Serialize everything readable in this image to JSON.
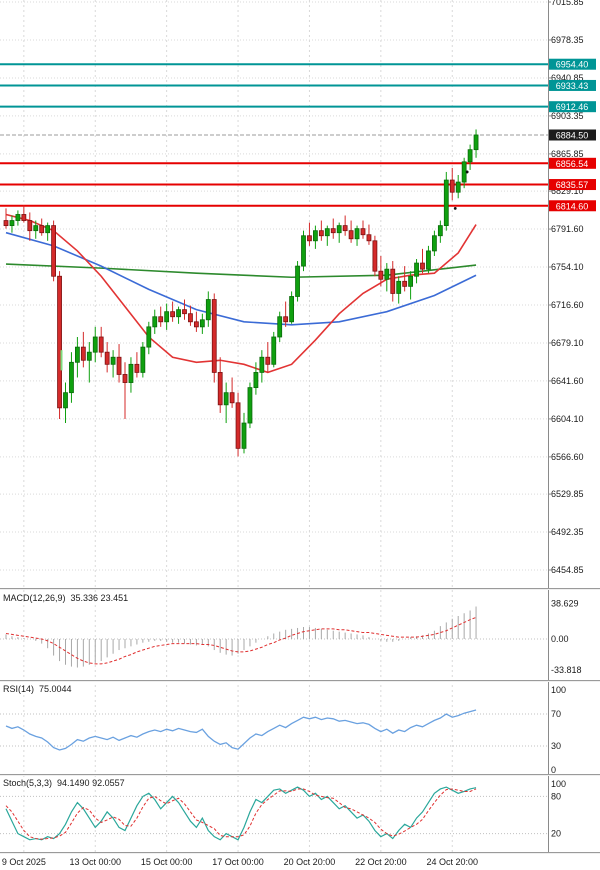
{
  "chart_data": {
    "type": "candlestick",
    "grid": true,
    "colors": {
      "candle_up": "#0fa00f",
      "candle_up_border": "#0a6b0a",
      "candle_down": "#d42a2a",
      "candle_down_border": "#7c1212",
      "grid": "#d9d9d9",
      "axis_text": "#1a1a1a",
      "level_teal": "#009596",
      "level_red": "#e60000"
    },
    "price_axis": {
      "plain_ticks": [
        {
          "label": "7015.85",
          "price": 7015.85
        },
        {
          "label": "6978.35",
          "price": 6978.35
        },
        {
          "label": "6940.85",
          "price": 6940.85
        },
        {
          "label": "6903.35",
          "price": 6903.35
        },
        {
          "label": "6865.85",
          "price": 6865.85
        },
        {
          "label": "6829.10",
          "price": 6829.1
        },
        {
          "label": "6791.60",
          "price": 6791.6
        },
        {
          "label": "6754.10",
          "price": 6754.1
        },
        {
          "label": "6716.60",
          "price": 6716.6
        },
        {
          "label": "6679.10",
          "price": 6679.1
        },
        {
          "label": "6641.60",
          "price": 6641.6
        },
        {
          "label": "6604.10",
          "price": 6604.1
        },
        {
          "label": "6566.60",
          "price": 6566.6
        },
        {
          "label": "6529.85",
          "price": 6529.85
        },
        {
          "label": "6492.35",
          "price": 6492.35
        },
        {
          "label": "6454.85",
          "price": 6454.85
        }
      ],
      "current": {
        "label": "6884.50",
        "price": 6884.5,
        "line_color": "#9b9b9b",
        "box_color": "#1c1c1c"
      }
    },
    "levels": [
      {
        "label": "6954.40",
        "price": 6954.4,
        "color": "#009596"
      },
      {
        "label": "6933.43",
        "price": 6933.43,
        "color": "#009596"
      },
      {
        "label": "6912.46",
        "price": 6912.46,
        "color": "#009596"
      },
      {
        "label": "6856.54",
        "price": 6856.54,
        "color": "#e60000"
      },
      {
        "label": "6835.57",
        "price": 6835.57,
        "color": "#e60000"
      },
      {
        "label": "6814.60",
        "price": 6814.6,
        "color": "#e60000"
      }
    ],
    "time_axis": [
      {
        "i": 3,
        "label": "9 Oct 2025"
      },
      {
        "i": 15,
        "label": "13 Oct 00:00"
      },
      {
        "i": 27,
        "label": "15 Oct 00:00"
      },
      {
        "i": 39,
        "label": "17 Oct 00:00"
      },
      {
        "i": 51,
        "label": "20 Oct 20:00"
      },
      {
        "i": 63,
        "label": "22 Oct 20:00"
      },
      {
        "i": 75,
        "label": "24 Oct 20:00"
      }
    ],
    "candles": [
      [
        6800,
        6812,
        6792,
        6795
      ],
      [
        6795,
        6805,
        6788,
        6800
      ],
      [
        6800,
        6810,
        6795,
        6806
      ],
      [
        6806,
        6815,
        6798,
        6800
      ],
      [
        6800,
        6808,
        6780,
        6790
      ],
      [
        6790,
        6800,
        6782,
        6795
      ],
      [
        6795,
        6802,
        6785,
        6788
      ],
      [
        6788,
        6798,
        6780,
        6795
      ],
      [
        6795,
        6800,
        6740,
        6745
      ],
      [
        6745,
        6750,
        6604,
        6615
      ],
      [
        6615,
        6640,
        6600,
        6630
      ],
      [
        6630,
        6670,
        6620,
        6660
      ],
      [
        6660,
        6685,
        6645,
        6675
      ],
      [
        6675,
        6690,
        6655,
        6662
      ],
      [
        6662,
        6680,
        6640,
        6670
      ],
      [
        6670,
        6695,
        6660,
        6685
      ],
      [
        6685,
        6695,
        6665,
        6670
      ],
      [
        6670,
        6680,
        6650,
        6658
      ],
      [
        6658,
        6672,
        6645,
        6665
      ],
      [
        6665,
        6678,
        6640,
        6648
      ],
      [
        6648,
        6660,
        6604,
        6640
      ],
      [
        6640,
        6665,
        6630,
        6658
      ],
      [
        6658,
        6670,
        6645,
        6650
      ],
      [
        6650,
        6680,
        6645,
        6675
      ],
      [
        6675,
        6700,
        6668,
        6695
      ],
      [
        6695,
        6712,
        6688,
        6705
      ],
      [
        6705,
        6715,
        6695,
        6700
      ],
      [
        6700,
        6718,
        6692,
        6710
      ],
      [
        6710,
        6720,
        6700,
        6705
      ],
      [
        6705,
        6715,
        6698,
        6712
      ],
      [
        6712,
        6722,
        6702,
        6708
      ],
      [
        6708,
        6716,
        6696,
        6700
      ],
      [
        6700,
        6710,
        6690,
        6695
      ],
      [
        6695,
        6708,
        6688,
        6702
      ],
      [
        6702,
        6730,
        6695,
        6722
      ],
      [
        6722,
        6728,
        6640,
        6650
      ],
      [
        6650,
        6665,
        6610,
        6618
      ],
      [
        6618,
        6640,
        6600,
        6630
      ],
      [
        6630,
        6645,
        6615,
        6620
      ],
      [
        6620,
        6630,
        6567,
        6575
      ],
      [
        6575,
        6610,
        6570,
        6600
      ],
      [
        6600,
        6640,
        6595,
        6635
      ],
      [
        6635,
        6660,
        6628,
        6650
      ],
      [
        6650,
        6672,
        6640,
        6665
      ],
      [
        6665,
        6680,
        6650,
        6658
      ],
      [
        6658,
        6690,
        6655,
        6685
      ],
      [
        6685,
        6710,
        6680,
        6705
      ],
      [
        6705,
        6720,
        6695,
        6700
      ],
      [
        6700,
        6730,
        6698,
        6725
      ],
      [
        6725,
        6760,
        6720,
        6755
      ],
      [
        6755,
        6790,
        6750,
        6785
      ],
      [
        6785,
        6798,
        6775,
        6780
      ],
      [
        6780,
        6795,
        6772,
        6790
      ],
      [
        6790,
        6800,
        6780,
        6785
      ],
      [
        6785,
        6795,
        6775,
        6792
      ],
      [
        6792,
        6802,
        6782,
        6788
      ],
      [
        6788,
        6798,
        6778,
        6795
      ],
      [
        6795,
        6805,
        6785,
        6790
      ],
      [
        6790,
        6800,
        6778,
        6782
      ],
      [
        6782,
        6795,
        6775,
        6792
      ],
      [
        6792,
        6800,
        6782,
        6786
      ],
      [
        6786,
        6796,
        6776,
        6780
      ],
      [
        6780,
        6785,
        6745,
        6750
      ],
      [
        6750,
        6765,
        6735,
        6742
      ],
      [
        6742,
        6758,
        6730,
        6752
      ],
      [
        6752,
        6760,
        6720,
        6728
      ],
      [
        6728,
        6745,
        6718,
        6740
      ],
      [
        6740,
        6755,
        6730,
        6735
      ],
      [
        6735,
        6750,
        6722,
        6745
      ],
      [
        6745,
        6762,
        6738,
        6758
      ],
      [
        6758,
        6772,
        6748,
        6752
      ],
      [
        6752,
        6775,
        6748,
        6770
      ],
      [
        6770,
        6790,
        6765,
        6785
      ],
      [
        6785,
        6800,
        6778,
        6795
      ],
      [
        6795,
        6848,
        6790,
        6840
      ],
      [
        6840,
        6852,
        6820,
        6828
      ],
      [
        6828,
        6845,
        6822,
        6838
      ],
      [
        6838,
        6862,
        6832,
        6858
      ],
      [
        6858,
        6875,
        6850,
        6870
      ],
      [
        6870,
        6890,
        6862,
        6884.5
      ]
    ],
    "moving_averages": [
      {
        "name": "ma-fast-red",
        "color": "#e23434",
        "points": [
          [
            0,
            6806
          ],
          [
            4,
            6800
          ],
          [
            8,
            6790
          ],
          [
            12,
            6770
          ],
          [
            16,
            6745
          ],
          [
            20,
            6715
          ],
          [
            24,
            6685
          ],
          [
            28,
            6665
          ],
          [
            32,
            6660
          ],
          [
            36,
            6662
          ],
          [
            40,
            6658
          ],
          [
            44,
            6650
          ],
          [
            48,
            6658
          ],
          [
            52,
            6682
          ],
          [
            56,
            6708
          ],
          [
            60,
            6728
          ],
          [
            64,
            6742
          ],
          [
            68,
            6746
          ],
          [
            72,
            6748
          ],
          [
            76,
            6768
          ],
          [
            79,
            6796
          ]
        ]
      },
      {
        "name": "ma-mid-blue",
        "color": "#3b6bd6",
        "points": [
          [
            0,
            6788
          ],
          [
            8,
            6775
          ],
          [
            16,
            6755
          ],
          [
            24,
            6732
          ],
          [
            32,
            6712
          ],
          [
            40,
            6700
          ],
          [
            48,
            6697
          ],
          [
            56,
            6700
          ],
          [
            64,
            6710
          ],
          [
            72,
            6726
          ],
          [
            79,
            6746
          ]
        ]
      },
      {
        "name": "ma-slow-green",
        "color": "#2d8a2d",
        "points": [
          [
            0,
            6757
          ],
          [
            16,
            6753
          ],
          [
            32,
            6748
          ],
          [
            48,
            6744
          ],
          [
            64,
            6746
          ],
          [
            79,
            6756
          ]
        ]
      }
    ],
    "markers": [
      {
        "type": "dot",
        "i": 75,
        "price": 6812,
        "color": "#111111"
      },
      {
        "type": "dot",
        "i": 77,
        "price": 6848,
        "color": "#111111"
      },
      {
        "type": "tick",
        "i": 10,
        "price_from": 6652,
        "price_to": 6672,
        "color": "#7ddc7d"
      }
    ],
    "indicators": {
      "macd": {
        "name": "MACD(12,26,9)",
        "values_text": "35.336 23.451",
        "scale_labels": [
          "38.629",
          "0.00",
          "-33.818"
        ],
        "scale_values": [
          38.629,
          0,
          -33.818
        ],
        "hist_color": "#a8a8a8",
        "signal_color": "#e03030",
        "histogram": [
          5,
          3,
          2,
          1,
          0,
          -2,
          -5,
          -10,
          -18,
          -24,
          -28,
          -30,
          -31,
          -30,
          -28,
          -26,
          -24,
          -20,
          -16,
          -12,
          -10,
          -8,
          -6,
          -4,
          -3,
          -2,
          -2,
          -3,
          -4,
          -4,
          -5,
          -6,
          -7,
          -6,
          -8,
          -12,
          -15,
          -17,
          -18,
          -16,
          -12,
          -8,
          -4,
          0,
          3,
          6,
          8,
          10,
          11,
          12,
          13,
          13,
          12,
          11,
          10,
          9,
          8,
          7,
          6,
          5,
          4,
          2,
          0,
          -2,
          -3,
          -3,
          -2,
          0,
          2,
          3,
          4,
          6,
          9,
          14,
          18,
          22,
          25,
          28,
          31,
          35.3
        ],
        "signal": [
          6,
          5,
          4,
          3,
          2,
          1,
          0,
          -2,
          -5,
          -9,
          -13,
          -17,
          -21,
          -24,
          -26,
          -27,
          -27,
          -26,
          -24,
          -22,
          -19,
          -17,
          -14,
          -12,
          -10,
          -8,
          -7,
          -6,
          -5,
          -5,
          -5,
          -5,
          -5,
          -6,
          -6,
          -7,
          -9,
          -11,
          -13,
          -14,
          -14,
          -13,
          -11,
          -9,
          -6,
          -4,
          -1,
          1,
          4,
          6,
          8,
          9,
          10,
          11,
          11,
          11,
          10,
          10,
          9,
          8,
          7,
          7,
          6,
          5,
          4,
          3,
          2,
          2,
          2,
          2,
          3,
          4,
          5,
          7,
          9,
          12,
          15,
          18,
          21,
          23.5
        ]
      },
      "rsi": {
        "name": "RSI(14)",
        "values_text": "75.0044",
        "scale_labels": [
          "100",
          "70",
          "30",
          "0"
        ],
        "scale_values": [
          100,
          70,
          30,
          0
        ],
        "levels": [
          70,
          30
        ],
        "color": "#6aa1e0",
        "values": [
          55,
          52,
          54,
          50,
          45,
          42,
          40,
          35,
          28,
          25,
          27,
          32,
          38,
          36,
          40,
          42,
          40,
          38,
          41,
          37,
          40,
          43,
          41,
          45,
          48,
          50,
          48,
          51,
          49,
          52,
          50,
          48,
          47,
          51,
          42,
          36,
          32,
          34,
          28,
          26,
          33,
          40,
          45,
          43,
          48,
          52,
          56,
          53,
          58,
          62,
          66,
          64,
          66,
          63,
          65,
          64,
          61,
          62,
          60,
          58,
          59,
          57,
          52,
          48,
          51,
          46,
          50,
          48,
          53,
          56,
          54,
          58,
          62,
          65,
          70,
          66,
          68,
          71,
          73,
          75
        ]
      },
      "stoch": {
        "name": "Stoch(5,3,3)",
        "values_text": "94.1490 92.0557",
        "scale_labels": [
          "100",
          "80",
          "20"
        ],
        "scale_values": [
          100,
          80,
          20
        ],
        "levels": [
          80,
          20
        ],
        "k_color": "#2aa79b",
        "d_color": "#e03030",
        "k": [
          60,
          40,
          20,
          15,
          10,
          12,
          10,
          15,
          12,
          20,
          35,
          55,
          70,
          60,
          45,
          30,
          40,
          55,
          45,
          30,
          25,
          45,
          65,
          80,
          85,
          75,
          60,
          70,
          80,
          70,
          55,
          40,
          30,
          45,
          25,
          15,
          10,
          20,
          15,
          10,
          30,
          55,
          75,
          70,
          80,
          90,
          92,
          85,
          90,
          95,
          90,
          80,
          85,
          75,
          80,
          70,
          60,
          65,
          55,
          45,
          50,
          40,
          25,
          15,
          20,
          12,
          25,
          35,
          30,
          45,
          55,
          70,
          85,
          92,
          95,
          90,
          85,
          88,
          92,
          94.1
        ],
        "d": [
          65,
          55,
          40,
          25,
          15,
          12,
          11,
          12,
          13,
          16,
          22,
          37,
          53,
          62,
          58,
          45,
          38,
          42,
          47,
          43,
          33,
          32,
          45,
          63,
          77,
          80,
          73,
          68,
          73,
          77,
          68,
          55,
          42,
          38,
          33,
          28,
          17,
          15,
          15,
          15,
          18,
          32,
          53,
          67,
          75,
          82,
          89,
          89,
          88,
          92,
          92,
          88,
          82,
          80,
          78,
          77,
          70,
          62,
          60,
          55,
          50,
          45,
          38,
          27,
          20,
          16,
          19,
          24,
          30,
          35,
          43,
          57,
          70,
          82,
          91,
          92,
          90,
          88,
          88,
          92.1
        ]
      }
    }
  }
}
